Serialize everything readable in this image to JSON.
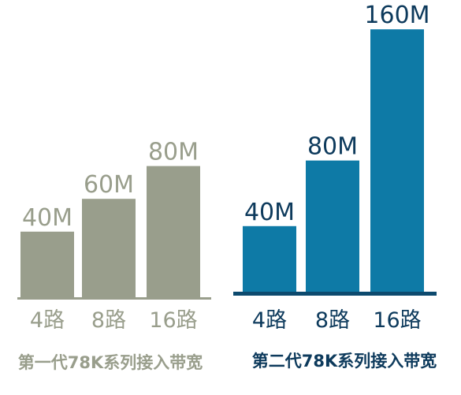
{
  "chart_data": [
    {
      "type": "bar",
      "title": "第一代78K系列接入带宽",
      "categories": [
        "4路",
        "8路",
        "16路"
      ],
      "values": [
        40,
        60,
        80
      ],
      "value_labels": [
        "40M",
        "60M",
        "80M"
      ],
      "unit": "M",
      "ylim": [
        0,
        160
      ],
      "grid": false,
      "color": "#999e8c",
      "axis_color": "#999e8c",
      "text_color": "#999e8c"
    },
    {
      "type": "bar",
      "title": "第二代78K系列接入带宽",
      "categories": [
        "4路",
        "8路",
        "16路"
      ],
      "values": [
        40,
        80,
        160
      ],
      "value_labels": [
        "40M",
        "80M",
        "160M"
      ],
      "unit": "M",
      "ylim": [
        0,
        160
      ],
      "grid": false,
      "color": "#0e7aa6",
      "axis_color": "#0d4a6e",
      "text_color": "#0d3a5c"
    }
  ]
}
